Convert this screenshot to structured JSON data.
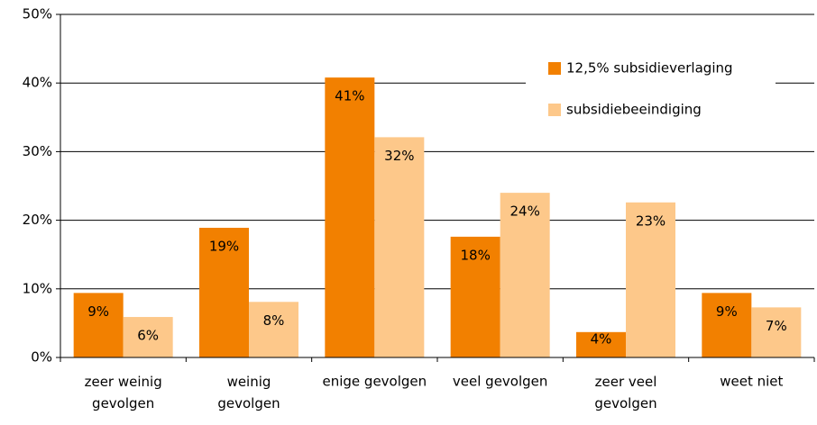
{
  "chart_data": {
    "type": "bar",
    "categories": [
      "zeer weinig gevolgen",
      "weinig gevolgen",
      "enige gevolgen",
      "veel gevolgen",
      "zeer veel gevolgen",
      "weet niet"
    ],
    "series": [
      {
        "name": "12,5% subsidieverlaging",
        "color": "#f28000",
        "values": [
          9.4,
          18.9,
          40.8,
          17.6,
          3.7,
          9.4
        ],
        "value_labels": [
          "9%",
          "19%",
          "41%",
          "18%",
          "4%",
          "9%"
        ]
      },
      {
        "name": "subsidiebeeindiging",
        "color": "#fdc88a",
        "values": [
          5.9,
          8.1,
          32.1,
          24.0,
          22.6,
          7.3
        ],
        "value_labels": [
          "6%",
          "8%",
          "32%",
          "24%",
          "23%",
          "7%"
        ]
      }
    ],
    "ylim": [
      0,
      50
    ],
    "yticks": [
      {
        "value": 0,
        "label": "0%"
      },
      {
        "value": 10,
        "label": "10%"
      },
      {
        "value": 20,
        "label": "20%"
      },
      {
        "value": 30,
        "label": "30%"
      },
      {
        "value": 40,
        "label": "40%"
      },
      {
        "value": 50,
        "label": "50%"
      }
    ],
    "grid": true,
    "legend": "upper right"
  }
}
